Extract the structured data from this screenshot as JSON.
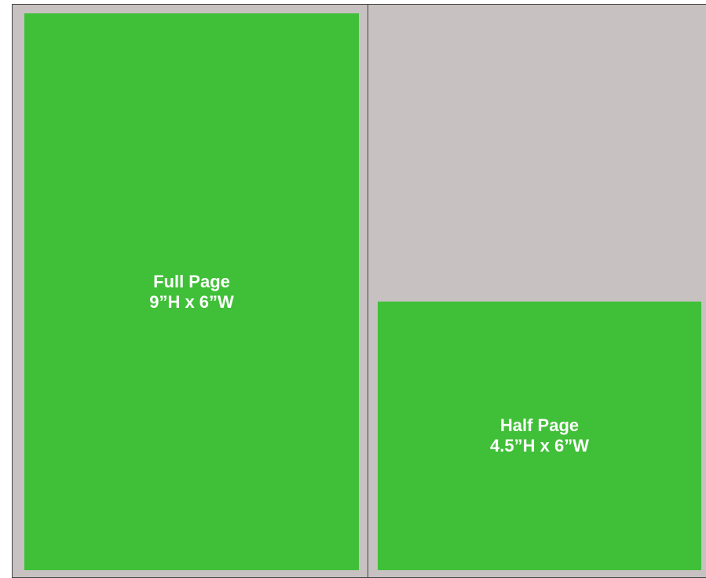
{
  "panels": [
    {
      "title": "Full Page",
      "size": "9”H x 6”W"
    },
    {
      "title": "Half Page",
      "size": "4.5”H x 6”W"
    }
  ]
}
